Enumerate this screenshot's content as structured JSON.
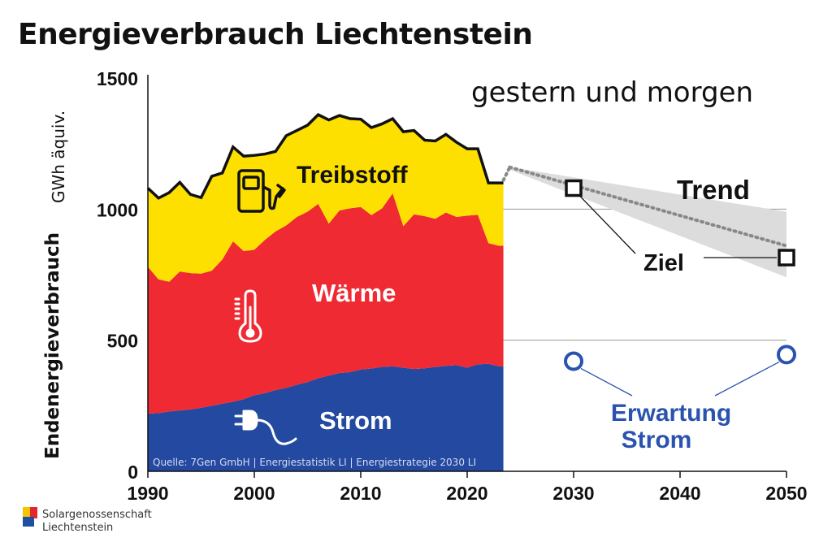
{
  "title": "Energieverbrauch Liechtenstein",
  "subtitle": "gestern und morgen",
  "yaxis_title": "Endenergieverbrauch",
  "yaxis_unit": "GWh äquiv.",
  "source_note": "Quelle: 7Gen GmbH | Energiestatistik LI | Energiestrategie 2030 LI",
  "labels": {
    "treibstoff": "Treibstoff",
    "waerme": "Wärme",
    "strom": "Strom",
    "trend": "Trend",
    "ziel": "Ziel",
    "erwartung_line1": "Erwartung",
    "erwartung_line2": "Strom"
  },
  "logo": {
    "line1": "Solargenossenschaft",
    "line2": "Liechtenstein",
    "colors": [
      "#f5c400",
      "#e3262d",
      "#1f4fa0"
    ]
  },
  "colors": {
    "treibstoff": "#fde000",
    "waerme": "#ef2a32",
    "strom": "#2349a0",
    "trend_band": "#dcdcdc",
    "erwartung": "#2a53b0"
  },
  "chart_data": {
    "type": "area",
    "x": [
      1990,
      1991,
      1992,
      1993,
      1994,
      1995,
      1996,
      1997,
      1998,
      1999,
      2000,
      2001,
      2002,
      2003,
      2004,
      2005,
      2006,
      2007,
      2008,
      2009,
      2010,
      2011,
      2012,
      2013,
      2014,
      2015,
      2016,
      2017,
      2018,
      2019,
      2020,
      2021,
      2022,
      2023
    ],
    "stacked": true,
    "series": [
      {
        "name": "Strom",
        "values": [
          220,
          222,
          228,
          232,
          236,
          242,
          250,
          258,
          265,
          275,
          290,
          298,
          310,
          318,
          330,
          340,
          355,
          365,
          375,
          378,
          388,
          392,
          398,
          400,
          395,
          390,
          393,
          398,
          402,
          405,
          395,
          408,
          410,
          400
        ]
      },
      {
        "name": "Wärme",
        "values": [
          560,
          510,
          495,
          530,
          520,
          512,
          515,
          550,
          612,
          565,
          555,
          585,
          605,
          620,
          640,
          650,
          665,
          580,
          620,
          625,
          620,
          585,
          605,
          660,
          540,
          590,
          580,
          565,
          585,
          565,
          580,
          570,
          460,
          460
        ]
      },
      {
        "name": "Treibstoff",
        "values": [
          300,
          310,
          340,
          340,
          300,
          290,
          360,
          330,
          360,
          362,
          360,
          327,
          305,
          342,
          330,
          330,
          340,
          395,
          362,
          342,
          335,
          334,
          322,
          285,
          360,
          320,
          290,
          297,
          298,
          285,
          255,
          252,
          230,
          240
        ]
      }
    ],
    "trend": {
      "x": [
        2024,
        2050
      ],
      "values": [
        1160,
        860
      ],
      "band_upper": [
        1160,
        990
      ],
      "band_lower": [
        1150,
        740
      ]
    },
    "ziel": {
      "x": [
        2030,
        2050
      ],
      "values": [
        1080,
        815
      ]
    },
    "erwartung_strom": {
      "x": [
        2030,
        2050
      ],
      "values": [
        420,
        445
      ]
    },
    "xticks": [
      1990,
      2000,
      2010,
      2020,
      2030,
      2040,
      2050
    ],
    "yticks": [
      0,
      500,
      1000,
      1500
    ],
    "xlim": [
      1990,
      2050
    ],
    "ylim": [
      0,
      1500
    ]
  }
}
